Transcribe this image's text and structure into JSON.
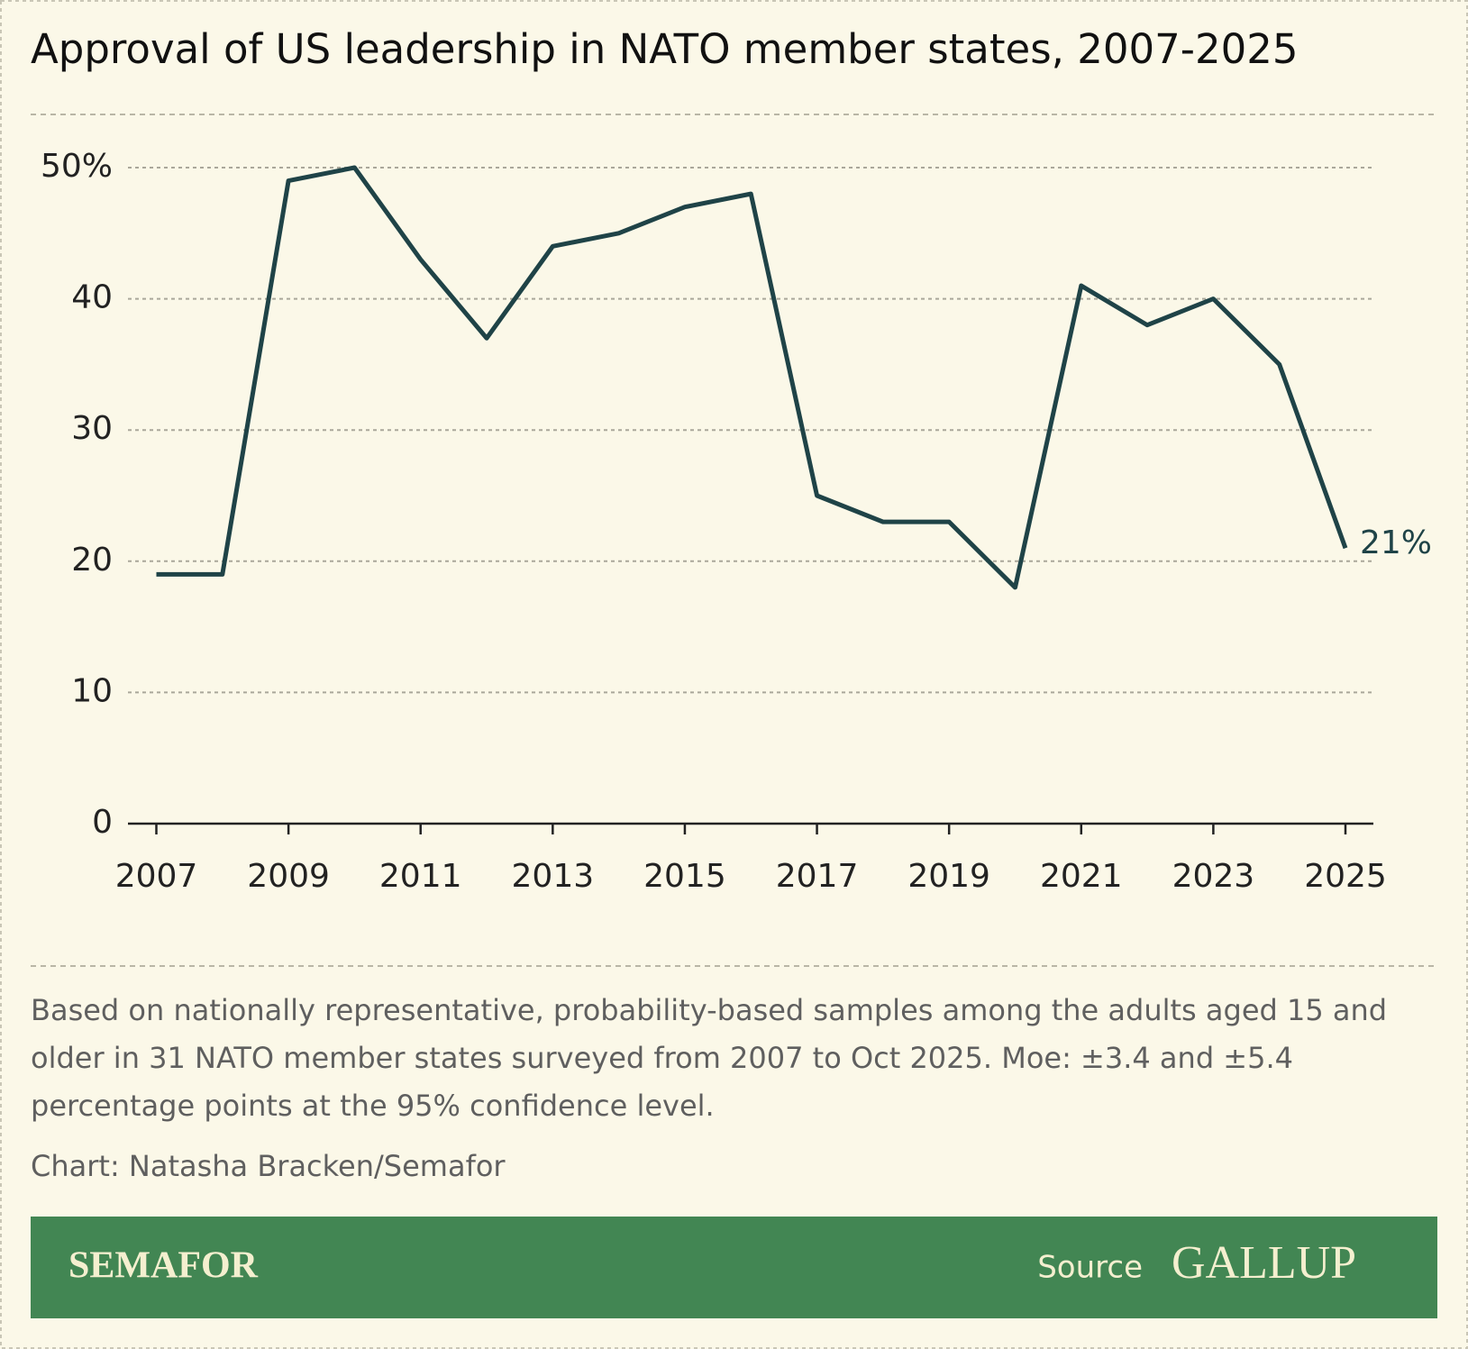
{
  "chart_data": {
    "type": "line",
    "title": "Approval of US leadership in NATO member states, 2007-2025",
    "x": [
      2007,
      2008,
      2009,
      2010,
      2011,
      2012,
      2013,
      2014,
      2015,
      2016,
      2017,
      2018,
      2019,
      2020,
      2021,
      2022,
      2023,
      2024,
      2025
    ],
    "values": [
      19,
      19,
      49,
      50,
      43,
      37,
      44,
      45,
      47,
      48,
      25,
      23,
      23,
      18,
      41,
      38,
      40,
      35,
      21
    ],
    "value_labels": [
      null,
      null,
      null,
      null,
      null,
      null,
      null,
      null,
      null,
      null,
      null,
      null,
      null,
      null,
      null,
      null,
      null,
      null,
      "21%"
    ],
    "color": "#1f4347",
    "xlim": [
      2007,
      2025
    ],
    "xticks": [
      2007,
      2009,
      2011,
      2013,
      2015,
      2017,
      2019,
      2021,
      2023,
      2025
    ],
    "ylim": [
      0,
      50
    ],
    "yticks": [
      0,
      10,
      20,
      30,
      40,
      {
        "value": 50,
        "label": "50%"
      }
    ],
    "grid": true,
    "note": "Based on nationally representative, probability-based samples among the adults aged 15 and older in 31 NATO member states surveyed from 2007 to Oct 2025. Moe: ±3.4 and ±5.4 percentage points at the 95% confidence level.",
    "credit": "Chart: Natasha Bracken/Semafor",
    "brand": "SEMAFOR",
    "source_label": "Source",
    "source": "GALLUP"
  }
}
